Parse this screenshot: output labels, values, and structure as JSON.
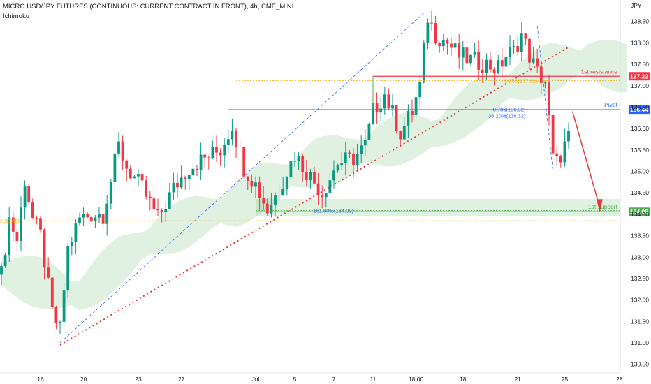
{
  "header": {
    "title": "MICRO USD/JPY FUTURES (CONTINUOUS: CURRENT CONTRACT IN FRONT), 4h, CME_MINI",
    "indicator": "Ichimoku"
  },
  "colors": {
    "up": "#089981",
    "down": "#f23645",
    "resistance": "#f23645",
    "pivot": "#2962ff",
    "support": "#4caf50",
    "trendline": "#e53935",
    "cloud_bull": "#c8e6c9",
    "cloud_bear": "#ffcdd2",
    "fib_blue": "#2962ff",
    "fib_orange": "#f7a600"
  },
  "chart_data": {
    "type": "candlestick",
    "symbol": "MICRO USD/JPY FUTURES (CONTINUOUS: CURRENT CONTRACT IN FRONT)",
    "timeframe": "4h",
    "exchange": "CME_MINI",
    "y_axis_unit": "JPY",
    "ylim": [
      130.3,
      139.0
    ],
    "y_ticks": [
      "130.50",
      "131.00",
      "131.50",
      "132.00",
      "132.50",
      "133.00",
      "133.50",
      "134.00",
      "134.50",
      "135.00",
      "135.50",
      "136.00",
      "136.50",
      "137.00",
      "137.50",
      "138.00",
      "138.50"
    ],
    "x_ticks": [
      {
        "label": "16",
        "bar": 10
      },
      {
        "label": "20",
        "bar": 21
      },
      {
        "label": "23",
        "bar": 35
      },
      {
        "label": "27",
        "bar": 46
      },
      {
        "label": "Jul",
        "bar": 65
      },
      {
        "label": "5",
        "bar": 75
      },
      {
        "label": "7",
        "bar": 85
      },
      {
        "label": "11",
        "bar": 95
      },
      {
        "label": "18:00",
        "bar": 106
      },
      {
        "label": "18",
        "bar": 118
      },
      {
        "label": "21",
        "bar": 132
      },
      {
        "label": "25",
        "bar": 144
      },
      {
        "label": "28",
        "bar": 158
      }
    ],
    "waypoints": [
      [
        0,
        132.6
      ],
      [
        2,
        133.9
      ],
      [
        4,
        133.4
      ],
      [
        6,
        134.8
      ],
      [
        8,
        133.9
      ],
      [
        10,
        133.5
      ],
      [
        13,
        131.7
      ],
      [
        15,
        131.3
      ],
      [
        17,
        133.2
      ],
      [
        20,
        133.9
      ],
      [
        23,
        134.0
      ],
      [
        26,
        134.0
      ],
      [
        30,
        135.6
      ],
      [
        32,
        135.1
      ],
      [
        36,
        134.6
      ],
      [
        40,
        133.9
      ],
      [
        44,
        134.6
      ],
      [
        48,
        135.1
      ],
      [
        52,
        135.3
      ],
      [
        56,
        135.5
      ],
      [
        59,
        136.1
      ],
      [
        62,
        135.1
      ],
      [
        65,
        134.7
      ],
      [
        68,
        134.1
      ],
      [
        71,
        134.6
      ],
      [
        75,
        135.4
      ],
      [
        78,
        135.0
      ],
      [
        82,
        134.5
      ],
      [
        86,
        135.2
      ],
      [
        90,
        135.3
      ],
      [
        93,
        135.6
      ],
      [
        95,
        136.4
      ],
      [
        98,
        136.8
      ],
      [
        102,
        135.9
      ],
      [
        105,
        136.4
      ],
      [
        107,
        137.0
      ],
      [
        109,
        138.6
      ],
      [
        111,
        138.2
      ],
      [
        114,
        138.0
      ],
      [
        117,
        137.7
      ],
      [
        120,
        137.6
      ],
      [
        124,
        137.5
      ],
      [
        127,
        137.4
      ],
      [
        129,
        137.7
      ],
      [
        131,
        137.8
      ],
      [
        133,
        138.2
      ],
      [
        135,
        137.7
      ],
      [
        137,
        137.3
      ],
      [
        139,
        137.1
      ],
      [
        141,
        135.3
      ],
      [
        142,
        135.2
      ],
      [
        144,
        135.6
      ],
      [
        145,
        135.8
      ]
    ],
    "cloud": [
      [
        0,
        132.6
      ],
      [
        10,
        132.4
      ],
      [
        20,
        132.1
      ],
      [
        30,
        132.9
      ],
      [
        40,
        133.5
      ],
      [
        50,
        133.9
      ],
      [
        60,
        134.2
      ],
      [
        66,
        134.6
      ],
      [
        72,
        134.8
      ],
      [
        80,
        135.2
      ],
      [
        88,
        135.3
      ],
      [
        96,
        135.6
      ],
      [
        104,
        135.8
      ],
      [
        112,
        135.9
      ],
      [
        120,
        136.5
      ],
      [
        130,
        137.0
      ],
      [
        140,
        137.4
      ],
      [
        150,
        137.6
      ],
      [
        160,
        137.4
      ]
    ],
    "levels": [
      {
        "name": "1st resistance",
        "value": 137.22,
        "label": "137.22"
      },
      {
        "name": "Pivot",
        "value": 136.44,
        "label": "136.44"
      },
      {
        "name": "1st support",
        "value": 134.06,
        "label": "134.06"
      }
    ],
    "fib_labels": [
      {
        "text": "0.786(137.12)",
        "value": 137.12
      },
      {
        "text": "0.786(136.32)",
        "value": 136.32
      },
      {
        "text": "38.20%(136.32)",
        "value": 136.32
      },
      {
        "text": "161.80%(134.09)",
        "value": 134.09
      },
      {
        "text": "61.80%(133.85)",
        "value": 133.85
      }
    ],
    "annotations": {
      "resistance": "1st resistance",
      "pivot": "Pivot",
      "support": "1st support"
    },
    "last_price": 135.85
  }
}
